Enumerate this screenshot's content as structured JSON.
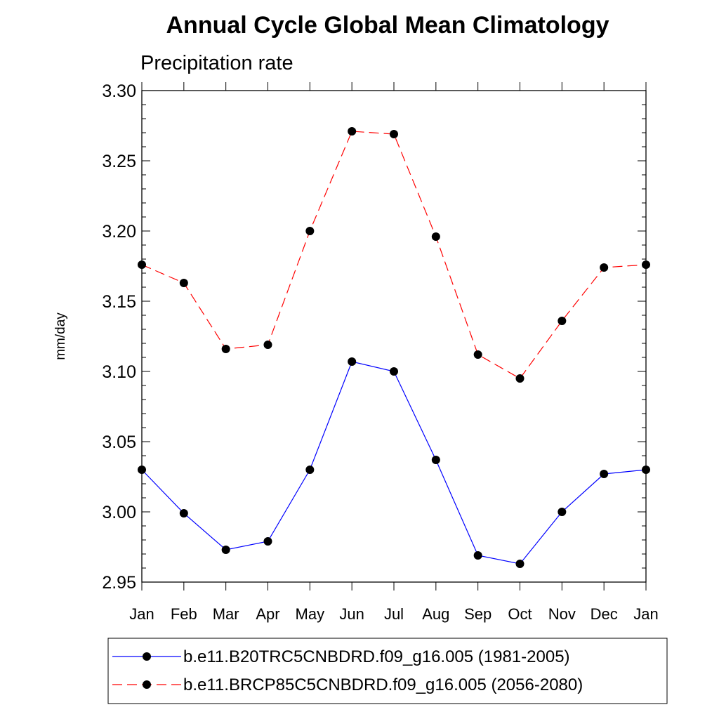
{
  "chart_data": {
    "type": "line",
    "title": "Annual Cycle Global Mean Climatology",
    "subtitle": "Precipitation rate",
    "xlabel": "",
    "ylabel": "mm/day",
    "categories": [
      "Jan",
      "Feb",
      "Mar",
      "Apr",
      "May",
      "Jun",
      "Jul",
      "Aug",
      "Sep",
      "Oct",
      "Nov",
      "Dec",
      "Jan"
    ],
    "ylim": [
      2.95,
      3.3
    ],
    "yticks": [
      "3.30",
      "3.25",
      "3.20",
      "3.15",
      "3.10",
      "3.05",
      "3.00",
      "2.95"
    ],
    "legend_position": "bottom",
    "series": [
      {
        "name": "b.e11.B20TRC5CNBDRD.f09_g16.005 (1981-2005)",
        "color": "#0000ff",
        "line_style": "solid",
        "values": [
          3.03,
          2.999,
          2.973,
          2.979,
          3.03,
          3.107,
          3.1,
          3.037,
          2.969,
          2.963,
          3.0,
          3.027,
          3.03
        ]
      },
      {
        "name": "b.e11.BRCP85C5CNBDRD.f09_g16.005 (2056-2080)",
        "color": "#ff0000",
        "line_style": "dashed",
        "values": [
          3.176,
          3.163,
          3.116,
          3.119,
          3.2,
          3.271,
          3.269,
          3.196,
          3.112,
          3.095,
          3.136,
          3.174,
          3.176
        ]
      }
    ]
  }
}
